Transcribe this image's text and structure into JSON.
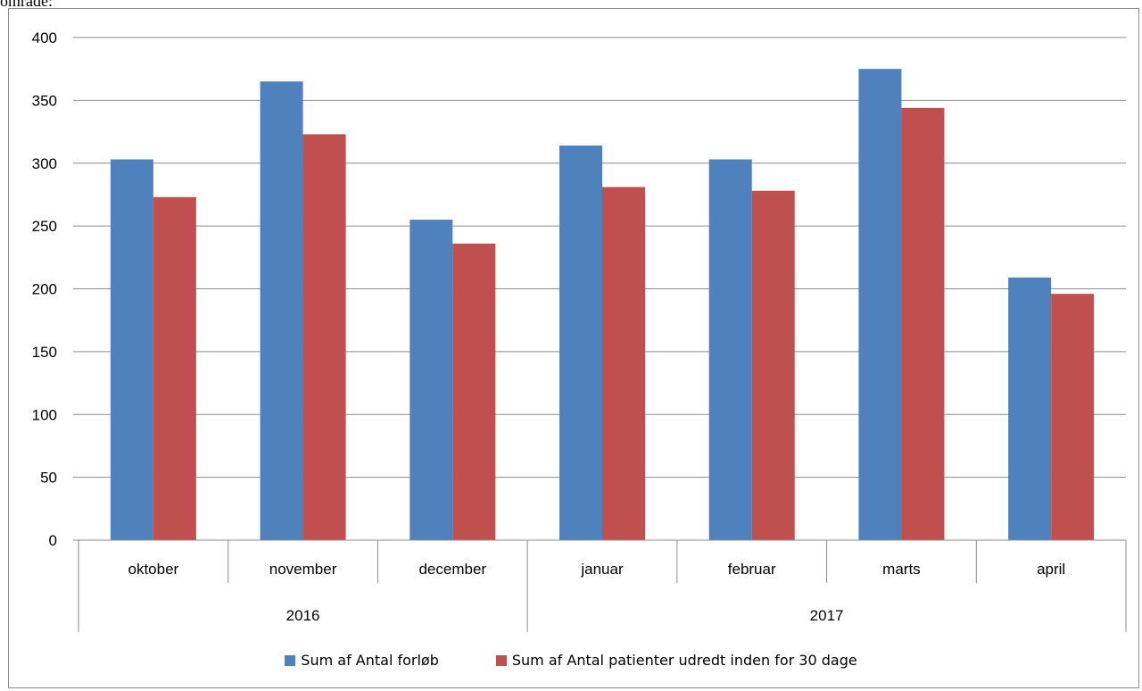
{
  "caption": "område:",
  "chart_data": {
    "type": "bar",
    "categories": [
      "oktober",
      "november",
      "december",
      "januar",
      "februar",
      "marts",
      "april"
    ],
    "groups": [
      {
        "label": "2016",
        "categories": [
          "oktober",
          "november",
          "december"
        ]
      },
      {
        "label": "2017",
        "categories": [
          "januar",
          "februar",
          "marts",
          "april"
        ]
      }
    ],
    "series": [
      {
        "name": "Sum af Antal forløb",
        "color": "#4F81BD",
        "values": [
          303,
          365,
          255,
          314,
          303,
          375,
          209
        ]
      },
      {
        "name": "Sum af Antal patienter udredt inden for 30 dage",
        "color": "#C0504D",
        "values": [
          273,
          323,
          236,
          281,
          278,
          344,
          196
        ]
      }
    ],
    "ylim": [
      0,
      400
    ],
    "yticks": [
      0,
      50,
      100,
      150,
      200,
      250,
      300,
      350,
      400
    ],
    "grid": true,
    "legend_position": "bottom",
    "title": "",
    "xlabel": "",
    "ylabel": ""
  }
}
